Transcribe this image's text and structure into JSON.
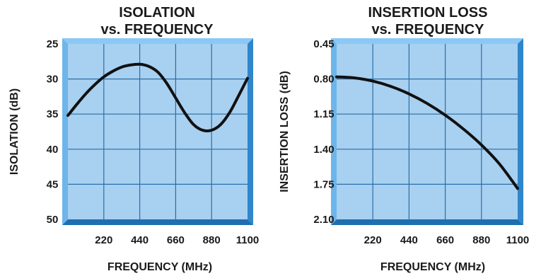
{
  "chart_data": [
    {
      "type": "line",
      "title_line1": "ISOLATION",
      "title_line2": "vs. FREQUENCY",
      "xlabel": "FREQUENCY (MHz)",
      "ylabel": "ISOLATION (dB)",
      "xlim": [
        0,
        1100
      ],
      "ylim": [
        25,
        50
      ],
      "y_inverted": true,
      "x_ticks": [
        "220",
        "440",
        "660",
        "880",
        "1100"
      ],
      "y_ticks": [
        "25",
        "30",
        "35",
        "40",
        "45",
        "50"
      ],
      "grid": true,
      "series": [
        {
          "x": [
            0,
            55,
            110,
            165,
            220,
            275,
            330,
            385,
            440,
            495,
            550,
            605,
            660,
            715,
            770,
            825,
            880,
            935,
            990,
            1045,
            1100
          ],
          "values": [
            35.2,
            33.6,
            32.1,
            30.8,
            29.7,
            28.9,
            28.3,
            28.0,
            27.9,
            28.2,
            29.0,
            30.6,
            32.7,
            34.8,
            36.5,
            37.3,
            37.3,
            36.5,
            34.8,
            32.4,
            29.9
          ]
        }
      ],
      "colors": {
        "plot_bg": "#a8d0f0",
        "frame": "#4fa3e0",
        "grid": "#2b6ea8",
        "line": "#111111"
      }
    },
    {
      "type": "line",
      "title_line1": "INSERTION LOSS",
      "title_line2": "vs. FREQUENCY",
      "xlabel": "FREQUENCY (MHz)",
      "ylabel": "INSERTION LOSS (dB)",
      "xlim": [
        0,
        1100
      ],
      "ylim": [
        0.45,
        2.1
      ],
      "y_inverted": true,
      "x_ticks": [
        "220",
        "440",
        "660",
        "880",
        "1100"
      ],
      "y_ticks": [
        "0.45",
        "0.80",
        "1.15",
        "1.40",
        "1.75",
        "2.10"
      ],
      "grid": true,
      "series": [
        {
          "x": [
            0,
            110,
            220,
            330,
            440,
            550,
            660,
            770,
            880,
            990,
            1100
          ],
          "values": [
            0.76,
            0.77,
            0.8,
            0.85,
            0.92,
            1.01,
            1.12,
            1.25,
            1.4,
            1.58,
            1.81
          ]
        }
      ],
      "colors": {
        "plot_bg": "#a8d0f0",
        "frame": "#4fa3e0",
        "grid": "#2b6ea8",
        "line": "#111111"
      }
    }
  ]
}
